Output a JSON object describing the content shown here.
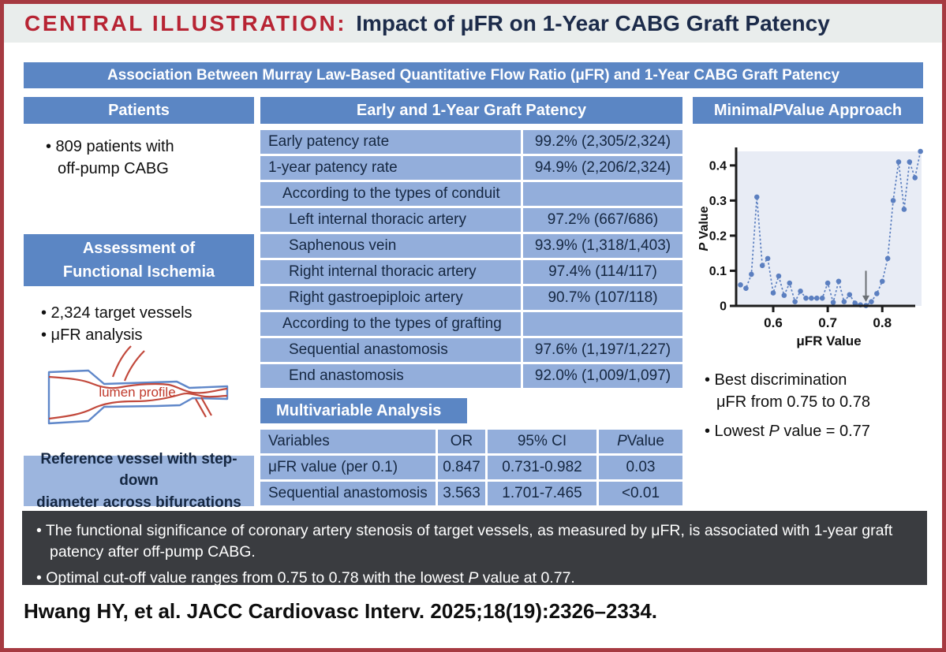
{
  "title": {
    "label": "CENTRAL ILLUSTRATION:",
    "text": "Impact of μFR on 1-Year CABG Graft Patency"
  },
  "banner": "Association Between Murray Law-Based Quantitative Flow Ratio (μFR) and 1-Year CABG Graft Patency",
  "left": {
    "patients_header": "Patients",
    "patients_bullet_lines": [
      "• 809 patients with",
      "off-pump CABG"
    ],
    "assessment_header_lines": [
      "Assessment of",
      "Functional Ischemia"
    ],
    "assessment_bullets": [
      "• 2,324 target vessels",
      "• μFR analysis"
    ],
    "diagram_label": "lumen profile",
    "reference_lines": [
      "Reference vessel with step-down",
      "diameter across bifurcations"
    ]
  },
  "middle": {
    "header": "Early and 1-Year Graft Patency",
    "patency_rows": [
      {
        "label": "Early patency rate",
        "value": "99.2% (2,305/2,324)",
        "indent": 0
      },
      {
        "label": "1-year patency rate",
        "value": "94.9% (2,206/2,324)",
        "indent": 0
      },
      {
        "label": "According to the types of conduit",
        "value": "",
        "indent": 1
      },
      {
        "label": "Left internal thoracic artery",
        "value": "97.2% (667/686)",
        "indent": 2
      },
      {
        "label": "Saphenous vein",
        "value": "93.9% (1,318/1,403)",
        "indent": 2
      },
      {
        "label": "Right internal thoracic artery",
        "value": "97.4% (114/117)",
        "indent": 2
      },
      {
        "label": "Right gastroepiploic artery",
        "value": "90.7% (107/118)",
        "indent": 2
      },
      {
        "label": "According to the types of grafting",
        "value": "",
        "indent": 1
      },
      {
        "label": "Sequential anastomosis",
        "value": "97.6% (1,197/1,227)",
        "indent": 2
      },
      {
        "label": "End anastomosis",
        "value": "92.0% (1,009/1,097)",
        "indent": 2
      }
    ],
    "multivariable_header": "Multivariable Analysis",
    "multivariable": {
      "headers": [
        [
          "Variables"
        ],
        [
          "OR"
        ],
        [
          "95% CI"
        ],
        [
          "",
          "P",
          " Value"
        ]
      ],
      "rows": [
        [
          "μFR value (per 0.1)",
          "0.847",
          "0.731-0.982",
          "0.03"
        ],
        [
          "Sequential anastomosis",
          "3.563",
          "1.701-7.465",
          "<0.01"
        ]
      ]
    }
  },
  "right": {
    "header_parts": [
      "Minimal ",
      "P",
      " Value Approach"
    ],
    "bullet1_lines": [
      "• Best discrimination",
      "μFR from 0.75 to 0.78"
    ],
    "bullet2_parts": [
      "• Lowest ",
      "P",
      " value = 0.77"
    ]
  },
  "chart_data": {
    "type": "line",
    "x": [
      0.54,
      0.55,
      0.56,
      0.57,
      0.58,
      0.59,
      0.6,
      0.61,
      0.62,
      0.63,
      0.64,
      0.65,
      0.66,
      0.67,
      0.68,
      0.69,
      0.7,
      0.71,
      0.72,
      0.73,
      0.74,
      0.75,
      0.76,
      0.77,
      0.78,
      0.79,
      0.8,
      0.81,
      0.82,
      0.83,
      0.84,
      0.85,
      0.86,
      0.87
    ],
    "y": [
      0.06,
      0.05,
      0.09,
      0.31,
      0.115,
      0.135,
      0.037,
      0.085,
      0.03,
      0.065,
      0.012,
      0.042,
      0.022,
      0.022,
      0.022,
      0.022,
      0.065,
      0.01,
      0.07,
      0.012,
      0.032,
      0.008,
      0.003,
      0.001,
      0.012,
      0.035,
      0.07,
      0.135,
      0.3,
      0.41,
      0.275,
      0.41,
      0.365,
      0.44
    ],
    "title": "",
    "xlabel": "μFR Value",
    "ylabel_parts": [
      "",
      "P",
      " Value"
    ],
    "xticks": [
      0.6,
      0.7,
      0.8
    ],
    "yticks": [
      0,
      0.1,
      0.2,
      0.3,
      0.4
    ],
    "xlim": [
      0.532,
      0.872
    ],
    "ylim": [
      0,
      0.44
    ],
    "arrow_x": 0.77,
    "annotation": "arrow marks minimum P value at μFR 0.77",
    "legend": "none",
    "grid": false
  },
  "footer": {
    "bullet1_parts": [
      "• The functional significance of coronary artery stenosis of target vessels, as measured by μFR, is associated with 1-year graft patency after off-pump CABG."
    ],
    "bullet2_parts": [
      "• Optimal cut-off value ranges from 0.75 to 0.78 with the lowest ",
      "P",
      " value at 0.77."
    ]
  },
  "citation": "Hwang HY, et al. JACC Cardiovasc Interv. 2025;18(19):2326–2334.",
  "colors": {
    "border_red": "#a63a41",
    "title_red": "#b72433",
    "navy": "#1c2b4a",
    "header_blue": "#5b86c4",
    "row_blue": "#93aedb",
    "reference_blue": "#9cb5de",
    "footer_dark": "#3a3c40",
    "band_gray": "#e9edec",
    "chart_blue": "#5b7fc0",
    "plot_bg": "#e8ecf5",
    "lumen_red": "#c2493c"
  }
}
